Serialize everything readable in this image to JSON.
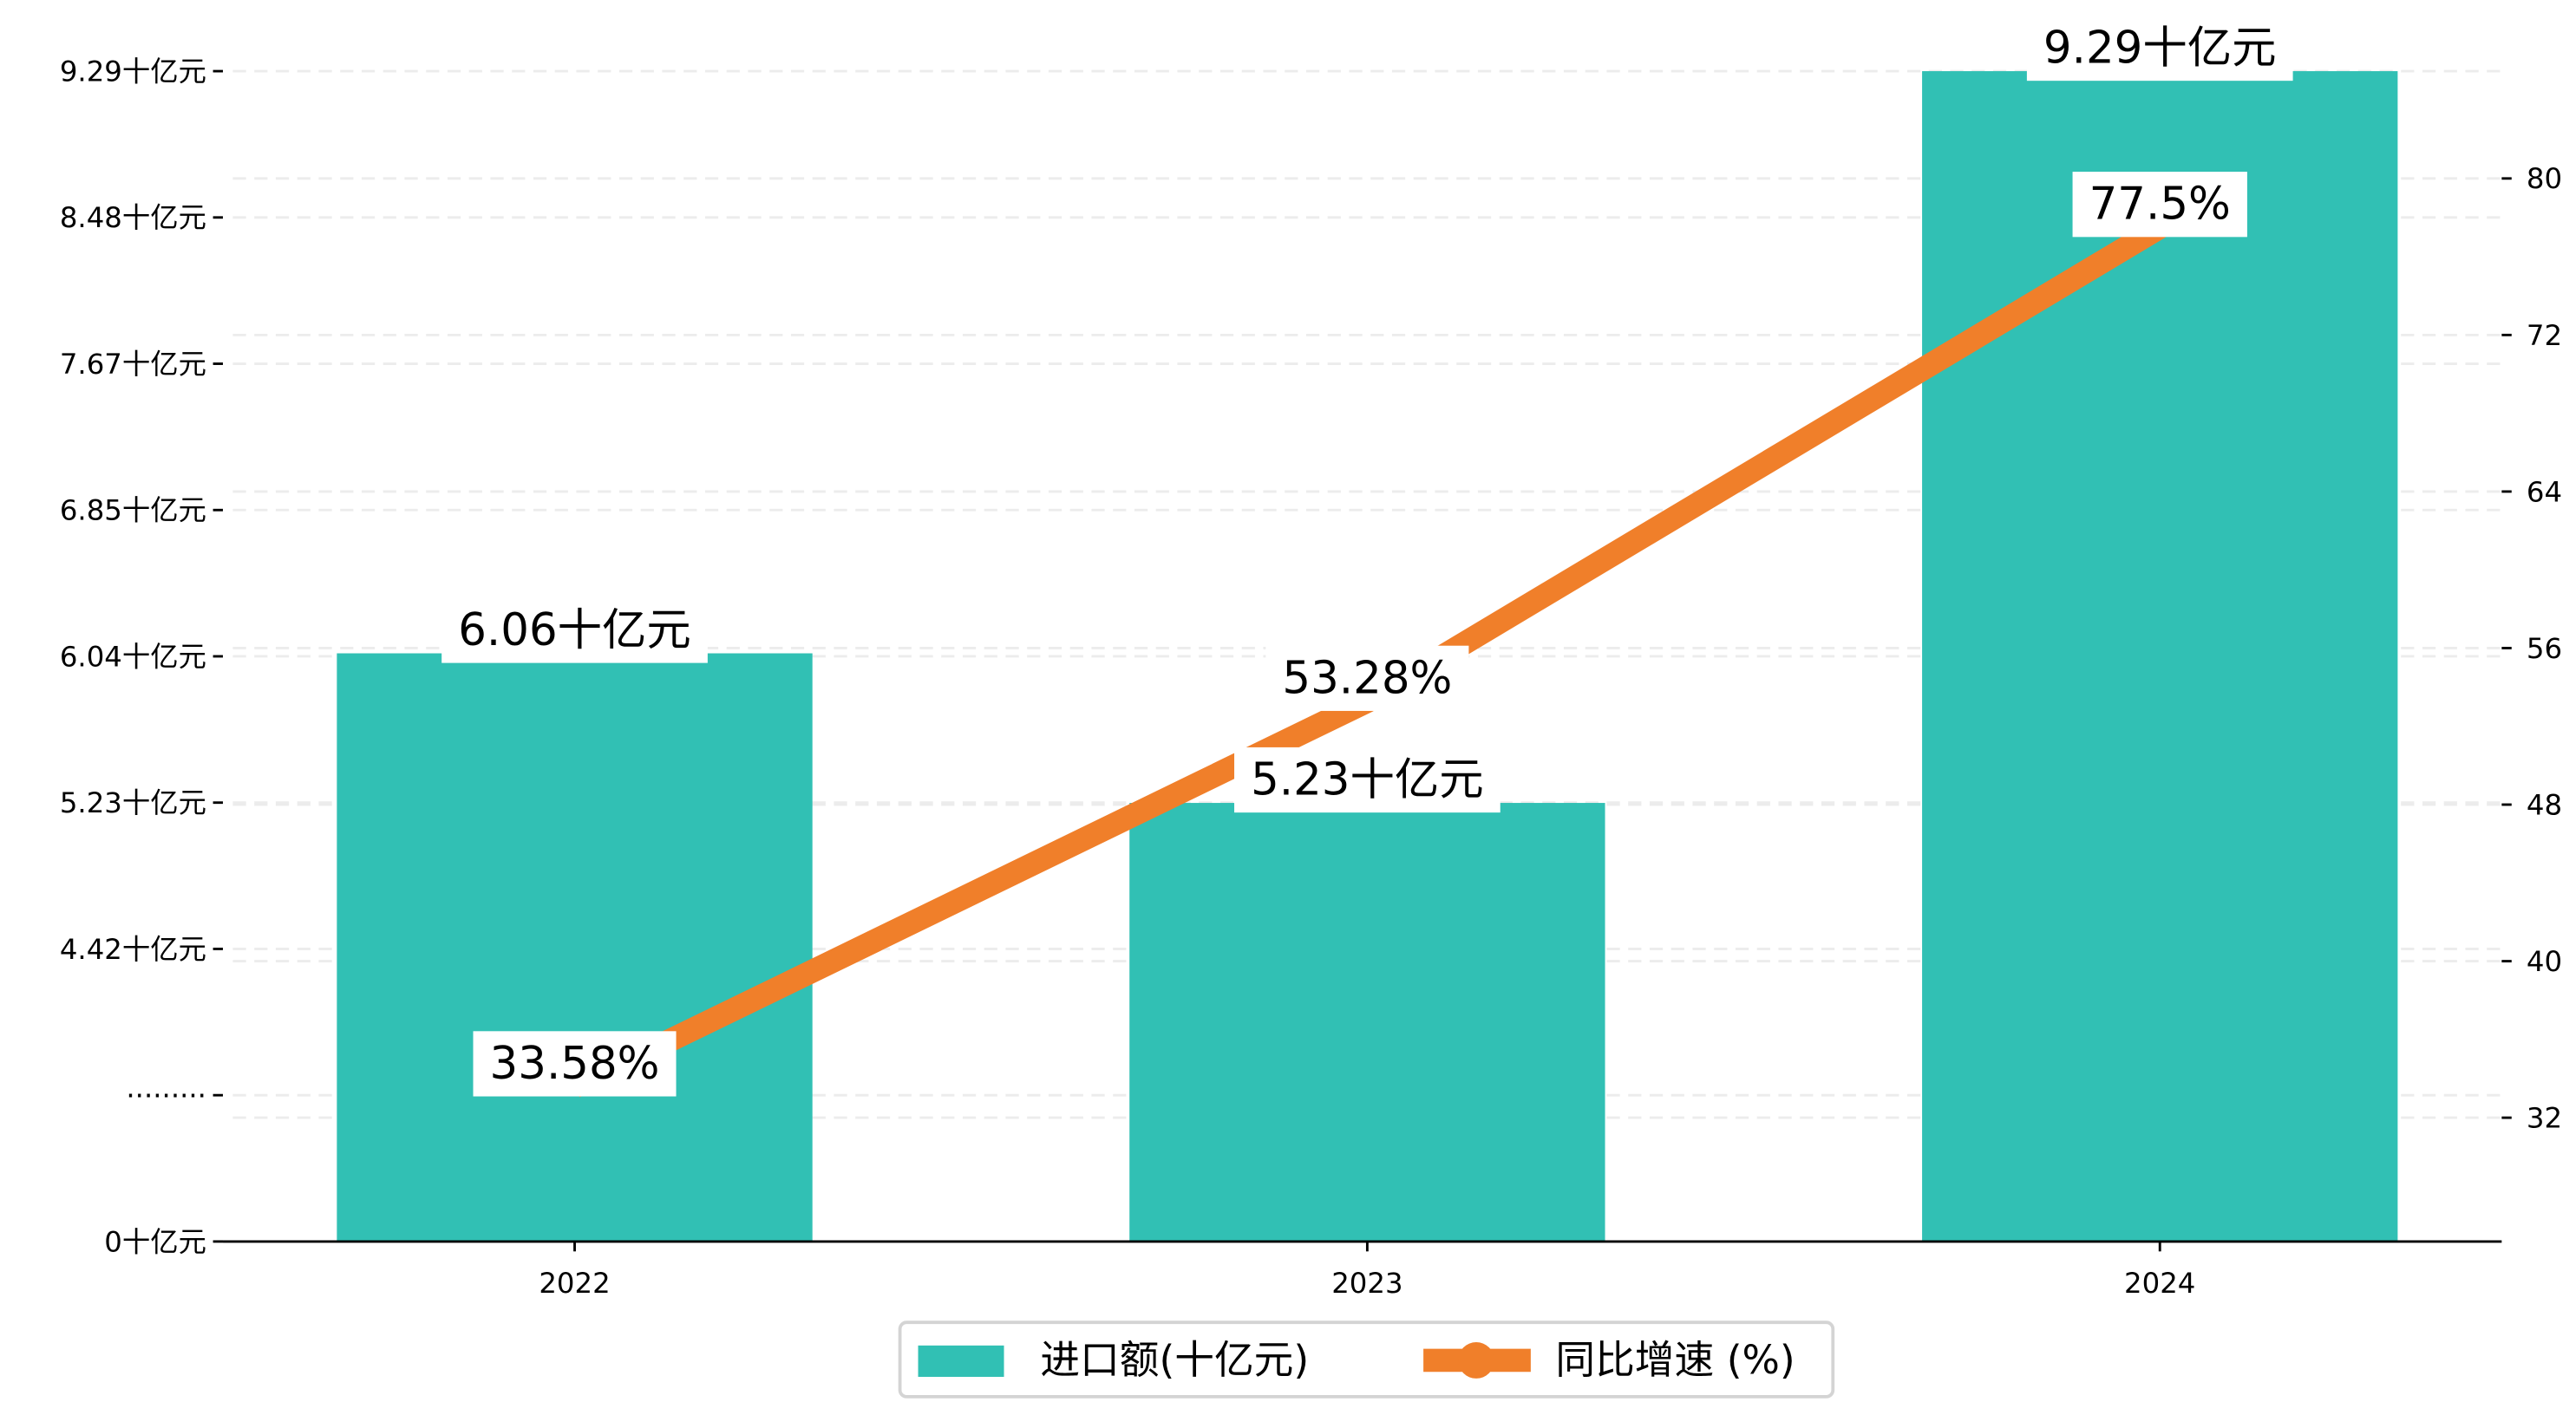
{
  "chart_data": {
    "type": "bar+line",
    "categories": [
      "2022",
      "2023",
      "2024"
    ],
    "series": [
      {
        "name": "进口额(十亿元)",
        "type": "bar",
        "axis": "left",
        "color": "#1fb8a7",
        "values": [
          6.06,
          5.23,
          9.29
        ],
        "labels": [
          "6.06十亿元",
          "5.23十亿元",
          "9.29十亿元"
        ]
      },
      {
        "name": "同比增速 (%)",
        "type": "line",
        "axis": "right",
        "color": "#f07f2a",
        "values": [
          33.58,
          53.28,
          77.5
        ],
        "labels": [
          "33.58%",
          "53.28%",
          "77.5%"
        ]
      }
    ],
    "left_axis": {
      "tick_labels": [
        "0十亿元",
        "·········",
        "4.42十亿元",
        "5.23十亿元",
        "6.04十亿元",
        "6.85十亿元",
        "7.67十亿元",
        "8.48十亿元",
        "9.29十亿元"
      ],
      "broken": true,
      "scale_range": [
        4.42,
        9.29
      ]
    },
    "right_axis": {
      "ticks": [
        32,
        40,
        48,
        56,
        64,
        72,
        80
      ],
      "range": [
        32,
        80
      ]
    },
    "grid": true,
    "legend_position": "bottom-center"
  }
}
